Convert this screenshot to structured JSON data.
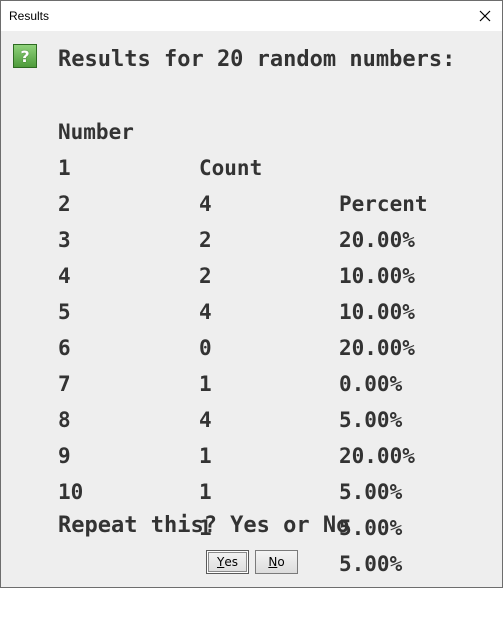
{
  "window": {
    "title": "Results",
    "close_icon": "close-icon"
  },
  "dialog": {
    "icon": "question-icon",
    "icon_glyph": "?",
    "heading": "Results for 20 random numbers:",
    "columns": [
      "Number",
      "Count",
      "Percent"
    ],
    "rows": [
      {
        "number": "1",
        "count": "4",
        "percent": "20.00%"
      },
      {
        "number": "2",
        "count": "2",
        "percent": "10.00%"
      },
      {
        "number": "3",
        "count": "2",
        "percent": "10.00%"
      },
      {
        "number": "4",
        "count": "4",
        "percent": "20.00%"
      },
      {
        "number": "5",
        "count": "0",
        "percent": "0.00%"
      },
      {
        "number": "6",
        "count": "1",
        "percent": "5.00%"
      },
      {
        "number": "7",
        "count": "4",
        "percent": "20.00%"
      },
      {
        "number": "8",
        "count": "1",
        "percent": "5.00%"
      },
      {
        "number": "9",
        "count": "1",
        "percent": "5.00%"
      },
      {
        "number": "10",
        "count": "1",
        "percent": "5.00%"
      }
    ],
    "prompt": "Repeat this? Yes or No"
  },
  "buttons": {
    "yes_mnemonic": "Y",
    "yes_rest": "es",
    "no_mnemonic": "N",
    "no_rest": "o"
  },
  "colors": {
    "icon_green": "#4e9b3b",
    "text": "#333333",
    "dialog_bg": "#eeeeee"
  }
}
